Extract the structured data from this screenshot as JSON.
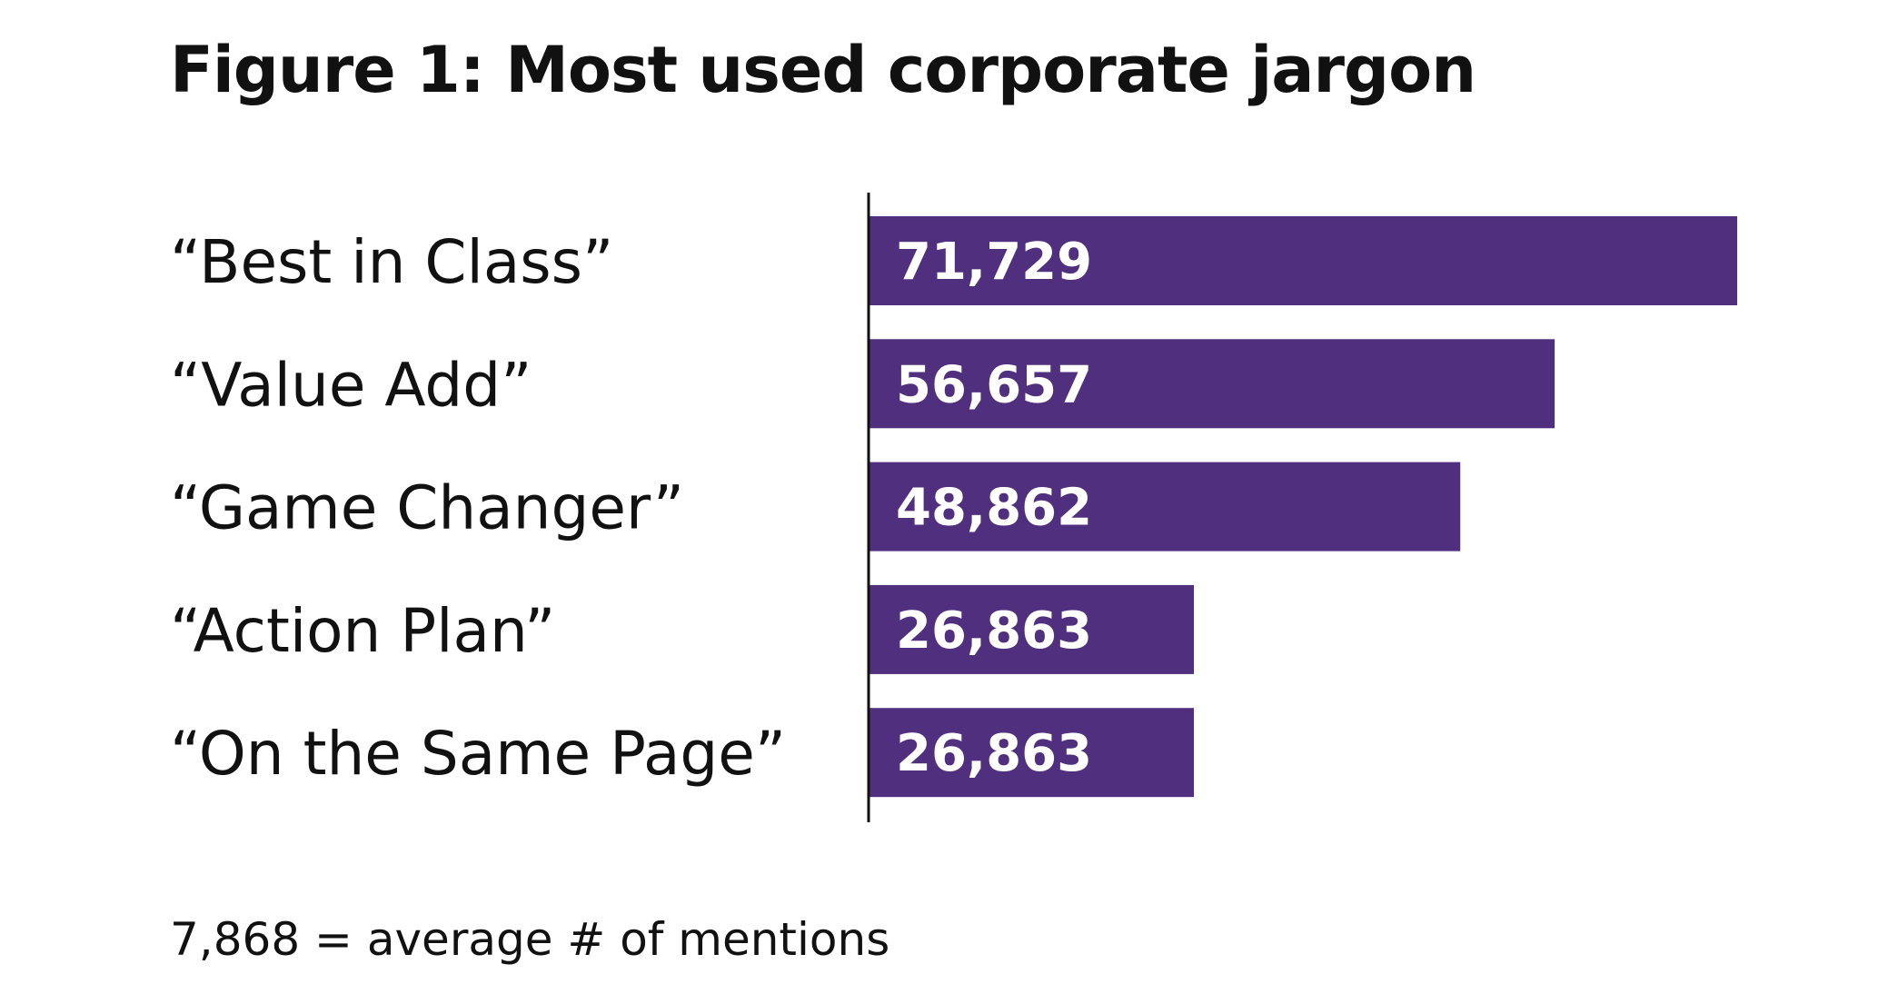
{
  "chart_data": {
    "type": "bar",
    "orientation": "horizontal",
    "title": "Figure 1: Most used corporate jargon",
    "categories": [
      "“Best in Class”",
      "“Value Add”",
      "“Game Changer”",
      "“Action Plan”",
      "“On the Same Page”"
    ],
    "values": [
      71729,
      56657,
      48862,
      26863,
      26863
    ],
    "data_labels": [
      "71,729",
      "56,657",
      "48,862",
      "26,863",
      "26,863"
    ],
    "xlim": [
      0,
      71729
    ],
    "grid": false,
    "legend": "none",
    "bar_color": "#4f2f7e",
    "footnote": "7,868 = average # of mentions"
  }
}
